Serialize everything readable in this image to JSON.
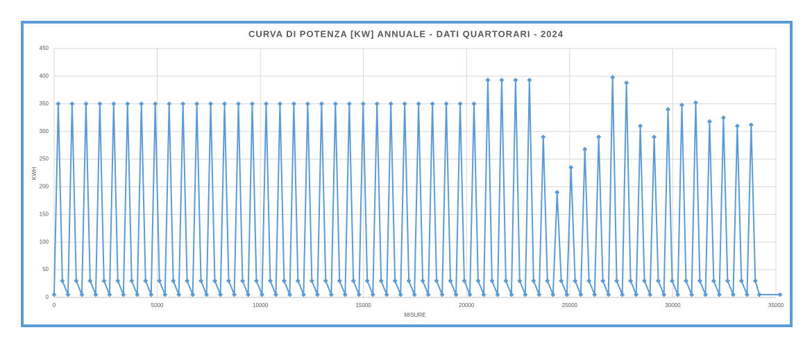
{
  "chart_data": {
    "type": "line",
    "title": "CURVA DI POTENZA [KW] ANNUALE - DATI QUARTORARI - 2024",
    "x_label": "MISURE",
    "y_label": "KWH",
    "x": [
      0,
      200,
      400,
      672,
      872,
      1072,
      1344,
      1544,
      1744,
      2016,
      2216,
      2416,
      2688,
      2888,
      3088,
      3360,
      3560,
      3760,
      4032,
      4232,
      4432,
      4704,
      4904,
      5104,
      5376,
      5576,
      5776,
      6048,
      6248,
      6448,
      6720,
      6920,
      7120,
      7392,
      7592,
      7792,
      8064,
      8264,
      8464,
      8736,
      8936,
      9136,
      9408,
      9608,
      9808,
      10080,
      10280,
      10480,
      10752,
      10952,
      11152,
      11424,
      11624,
      11824,
      12096,
      12296,
      12496,
      12768,
      12968,
      13168,
      13440,
      13640,
      13840,
      14112,
      14312,
      14512,
      14784,
      14984,
      15184,
      15456,
      15656,
      15856,
      16128,
      16328,
      16528,
      16800,
      17000,
      17200,
      17472,
      17672,
      17872,
      18144,
      18344,
      18544,
      18816,
      19016,
      19216,
      19488,
      19688,
      19888,
      20160,
      20360,
      20560,
      20832,
      21032,
      21232,
      21504,
      21704,
      21904,
      22176,
      22376,
      22576,
      22848,
      23048,
      23248,
      23520,
      23720,
      23920,
      24192,
      24392,
      24592,
      24864,
      25064,
      25264,
      25536,
      25736,
      25936,
      26208,
      26408,
      26608,
      26880,
      27080,
      27280,
      27552,
      27752,
      27952,
      28224,
      28424,
      28624,
      28896,
      29096,
      29296,
      29568,
      29768,
      29968,
      30240,
      30440,
      30640,
      30912,
      31112,
      31312,
      31584,
      31784,
      31984,
      32256,
      32456,
      32656,
      32928,
      33128,
      33328,
      33600,
      33800,
      34000,
      34200,
      35200
    ],
    "series": [
      {
        "color": "#5b9bd5",
        "values": [
          5,
          350,
          30,
          5,
          350,
          30,
          5,
          350,
          30,
          5,
          350,
          30,
          5,
          350,
          30,
          5,
          350,
          30,
          5,
          350,
          30,
          5,
          350,
          30,
          5,
          350,
          30,
          5,
          350,
          30,
          5,
          350,
          30,
          5,
          350,
          30,
          5,
          350,
          30,
          5,
          350,
          30,
          5,
          350,
          30,
          5,
          350,
          30,
          5,
          350,
          30,
          5,
          350,
          30,
          5,
          350,
          30,
          5,
          350,
          30,
          5,
          350,
          30,
          5,
          350,
          30,
          5,
          350,
          30,
          5,
          350,
          30,
          5,
          350,
          30,
          5,
          350,
          30,
          5,
          350,
          30,
          5,
          350,
          30,
          5,
          350,
          30,
          5,
          350,
          30,
          5,
          350,
          30,
          5,
          393,
          30,
          5,
          393,
          30,
          5,
          393,
          30,
          5,
          393,
          30,
          5,
          290,
          30,
          5,
          190,
          30,
          5,
          235,
          30,
          5,
          268,
          30,
          5,
          290,
          30,
          5,
          398,
          30,
          5,
          388,
          30,
          5,
          310,
          30,
          5,
          290,
          30,
          5,
          340,
          30,
          5,
          348,
          30,
          5,
          352,
          30,
          5,
          318,
          30,
          5,
          325,
          30,
          5,
          310,
          30,
          5,
          312,
          30,
          5,
          5
        ]
      }
    ],
    "xlim": [
      0,
      35000
    ],
    "xticks": [
      0,
      5000,
      10000,
      15000,
      20000,
      25000,
      30000,
      35000
    ],
    "ylim": [
      0,
      450
    ],
    "yticks": [
      0,
      50,
      100,
      150,
      200,
      250,
      300,
      350,
      400,
      450
    ],
    "grid": true
  }
}
